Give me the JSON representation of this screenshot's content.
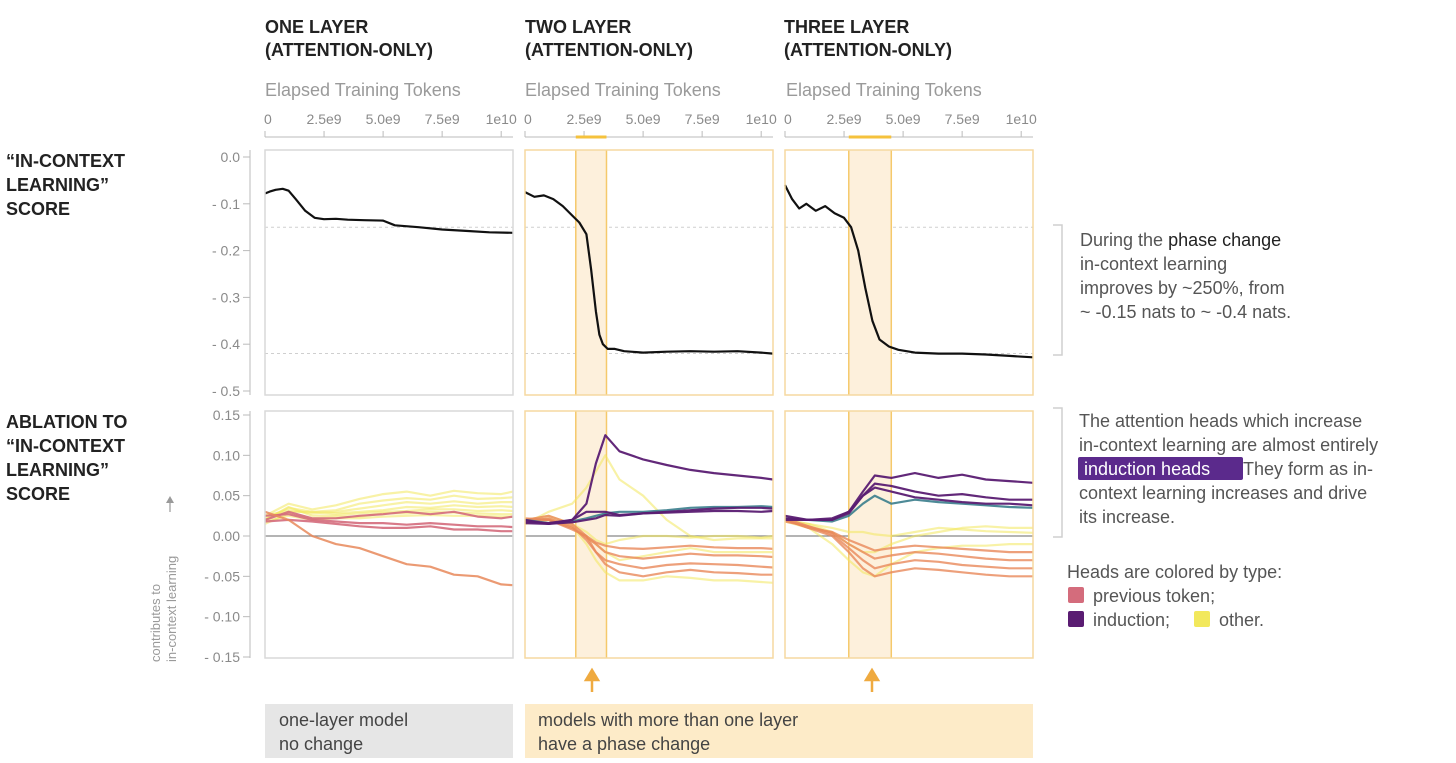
{
  "columns": [
    {
      "title_line1": "ONE LAYER",
      "title_line2": "(ATTENTION-ONLY)",
      "xlabel": "Elapsed Training Tokens"
    },
    {
      "title_line1": "TWO LAYER",
      "title_line2": "(ATTENTION-ONLY)",
      "xlabel": "Elapsed Training Tokens"
    },
    {
      "title_line1": "THREE LAYER",
      "title_line2": "(ATTENTION-ONLY)",
      "xlabel": "Elapsed Training Tokens"
    }
  ],
  "x_ticks": [
    "0",
    "2.5e9",
    "5.0e9",
    "7.5e9",
    "1e10"
  ],
  "row_labels": {
    "icl": [
      "“IN-CONTEXT",
      "LEARNING”",
      "SCORE"
    ],
    "ablation": [
      "ABLATION TO",
      "“IN-CONTEXT",
      "LEARNING”",
      "SCORE"
    ]
  },
  "icl_yticks": [
    "0.0",
    "- 0.1",
    "- 0.2",
    "- 0.3",
    "- 0.4",
    "- 0.5"
  ],
  "abl_yticks": [
    "0.15",
    "0.10",
    "0.05",
    "0.00",
    "- 0.05",
    "- 0.10",
    "- 0.15"
  ],
  "abl_ylabel": [
    "contributes to",
    "in-context learning"
  ],
  "annotations": {
    "phase_change": {
      "prefix": "During the ",
      "highlight": "phase change",
      "rest": [
        "in-context learning",
        "improves by ~250%, from",
        "~ -0.15 nats to ~ -0.4 nats."
      ]
    },
    "induction": {
      "line1": "The attention heads which increase",
      "line2": "in-context learning are almost entirely",
      "highlight": "induction heads",
      "line3_rest": " They form as in-",
      "line4": "context learning increases and drive",
      "line5": "its increase."
    },
    "legend": {
      "title": "Heads are colored by type:",
      "prev": "previous token;",
      "induction": "induction;",
      "other": "other."
    }
  },
  "footer": {
    "one_layer": [
      "one-layer model",
      "no change"
    ],
    "multi_layer": [
      "models with more than one layer",
      "have a phase change"
    ]
  },
  "colors": {
    "previous_token": "#d46c7c",
    "induction": "#5a1c72",
    "other": "#f2e85c",
    "phase_band": "#fdf0dc",
    "phase_line": "#f5c96b",
    "arrow": "#efaa40",
    "footer_gray": "#e6e6e6",
    "footer_orange": "#fdebc8",
    "highlight_purple": "#5b2a8c"
  },
  "chart_data": [
    {
      "type": "line",
      "title": "ONE LAYER (ATTENTION-ONLY)",
      "xlabel": "Elapsed Training Tokens",
      "xlim": [
        0,
        10500000000.0
      ],
      "ylim": [
        -0.5,
        0.0
      ],
      "ylabel": "“IN-CONTEXT LEARNING” SCORE",
      "reference_lines": [
        -0.15,
        -0.42
      ],
      "x": [
        0,
        200000000.0,
        450000000.0,
        750000000.0,
        1000000000.0,
        1300000000.0,
        1700000000.0,
        2100000000.0,
        2500000000.0,
        3000000000.0,
        3500000000.0,
        4200000000.0,
        5000000000.0,
        5500000000.0,
        6500000000.0,
        7500000000.0,
        8500000000.0,
        9500000000.0,
        10500000000.0
      ],
      "y": [
        -0.078,
        -0.074,
        -0.07,
        -0.068,
        -0.072,
        -0.09,
        -0.115,
        -0.13,
        -0.133,
        -0.132,
        -0.134,
        -0.135,
        -0.136,
        -0.146,
        -0.15,
        -0.155,
        -0.158,
        -0.161,
        -0.162
      ]
    },
    {
      "type": "line",
      "title": "TWO LAYER (ATTENTION-ONLY)",
      "xlabel": "Elapsed Training Tokens",
      "xlim": [
        0,
        10500000000.0
      ],
      "ylim": [
        -0.5,
        0.0
      ],
      "reference_lines": [
        -0.15,
        -0.42
      ],
      "phase_change": [
        2150000000.0,
        3450000000.0
      ],
      "x": [
        0,
        400000000.0,
        800000000.0,
        1200000000.0,
        1600000000.0,
        2000000000.0,
        2300000000.0,
        2600000000.0,
        2800000000.0,
        3000000000.0,
        3150000000.0,
        3300000000.0,
        3500000000.0,
        3800000000.0,
        4200000000.0,
        5000000000.0,
        6000000000.0,
        7000000000.0,
        8000000000.0,
        9000000000.0,
        10000000000.0,
        10500000000.0
      ],
      "y": [
        -0.075,
        -0.085,
        -0.082,
        -0.09,
        -0.105,
        -0.125,
        -0.14,
        -0.165,
        -0.24,
        -0.33,
        -0.38,
        -0.4,
        -0.41,
        -0.41,
        -0.415,
        -0.418,
        -0.416,
        -0.415,
        -0.416,
        -0.415,
        -0.418,
        -0.42
      ]
    },
    {
      "type": "line",
      "title": "THREE LAYER (ATTENTION-ONLY)",
      "xlabel": "Elapsed Training Tokens",
      "xlim": [
        0,
        10500000000.0
      ],
      "ylim": [
        -0.5,
        0.0
      ],
      "reference_lines": [
        -0.15,
        -0.42
      ],
      "phase_change": [
        2700000000.0,
        4500000000.0
      ],
      "x": [
        0,
        300000000.0,
        600000000.0,
        900000000.0,
        1300000000.0,
        1700000000.0,
        2100000000.0,
        2500000000.0,
        2800000000.0,
        3100000000.0,
        3400000000.0,
        3700000000.0,
        4000000000.0,
        4400000000.0,
        4800000000.0,
        5500000000.0,
        6500000000.0,
        7500000000.0,
        8500000000.0,
        9500000000.0,
        10500000000.0
      ],
      "y": [
        -0.06,
        -0.09,
        -0.11,
        -0.1,
        -0.115,
        -0.105,
        -0.12,
        -0.13,
        -0.15,
        -0.2,
        -0.28,
        -0.35,
        -0.39,
        -0.405,
        -0.412,
        -0.418,
        -0.42,
        -0.42,
        -0.422,
        -0.425,
        -0.428
      ]
    },
    {
      "type": "line",
      "title": "ONE LAYER ablation",
      "ylabel": "contributes to in-context learning",
      "xlim": [
        0,
        10500000000.0
      ],
      "ylim": [
        -0.15,
        0.15
      ],
      "x": [
        0,
        1000000000.0,
        2000000000.0,
        3000000000.0,
        4000000000.0,
        5000000000.0,
        6000000000.0,
        7000000000.0,
        8000000000.0,
        9000000000.0,
        10000000000.0,
        10500000000.0
      ],
      "series": [
        {
          "type": "other",
          "values": [
            0.025,
            0.04,
            0.033,
            0.038,
            0.046,
            0.052,
            0.055,
            0.05,
            0.056,
            0.053,
            0.052,
            0.055
          ]
        },
        {
          "type": "other",
          "values": [
            0.02,
            0.035,
            0.03,
            0.032,
            0.04,
            0.044,
            0.047,
            0.045,
            0.05,
            0.046,
            0.047,
            0.048
          ]
        },
        {
          "type": "other",
          "values": [
            0.025,
            0.032,
            0.028,
            0.03,
            0.034,
            0.038,
            0.042,
            0.04,
            0.043,
            0.04,
            0.042,
            0.042
          ]
        },
        {
          "type": "other",
          "values": [
            0.022,
            0.03,
            0.03,
            0.028,
            0.03,
            0.032,
            0.036,
            0.035,
            0.038,
            0.036,
            0.037,
            0.036
          ]
        },
        {
          "type": "other",
          "values": [
            0.02,
            0.036,
            0.025,
            0.026,
            0.028,
            0.03,
            0.031,
            0.033,
            0.033,
            0.031,
            0.032,
            0.031
          ]
        },
        {
          "type": "other",
          "values": [
            0.015,
            0.028,
            0.022,
            0.024,
            0.024,
            0.028,
            0.028,
            0.03,
            0.029,
            0.028,
            0.027,
            0.027
          ]
        },
        {
          "type": "other",
          "values": [
            0.018,
            0.025,
            0.02,
            0.022,
            0.022,
            0.024,
            0.025,
            0.026,
            0.025,
            0.025,
            0.024,
            0.024
          ]
        },
        {
          "type": "previous_token",
          "values": [
            0.025,
            0.027,
            0.02,
            0.018,
            0.016,
            0.016,
            0.014,
            0.016,
            0.014,
            0.012,
            0.012,
            0.011
          ]
        },
        {
          "type": "previous_token",
          "values": [
            0.02,
            0.03,
            0.022,
            0.022,
            0.025,
            0.027,
            0.03,
            0.027,
            0.03,
            0.024,
            0.022,
            0.024
          ]
        },
        {
          "type": "previous_token",
          "values": [
            0.018,
            0.02,
            0.018,
            0.015,
            0.012,
            0.01,
            0.01,
            0.012,
            0.008,
            0.008,
            0.006,
            0.006
          ]
        },
        {
          "type": "previous_token_orange",
          "values": [
            0.03,
            0.02,
            0.0,
            -0.01,
            -0.015,
            -0.025,
            -0.035,
            -0.038,
            -0.048,
            -0.05,
            -0.06,
            -0.061
          ]
        }
      ]
    },
    {
      "type": "line",
      "title": "TWO LAYER ablation",
      "xlim": [
        0,
        10500000000.0
      ],
      "ylim": [
        -0.15,
        0.15
      ],
      "phase_change": [
        2150000000.0,
        3450000000.0
      ],
      "x": [
        0,
        1000000000.0,
        2000000000.0,
        2600000000.0,
        3000000000.0,
        3400000000.0,
        4000000000.0,
        5000000000.0,
        6000000000.0,
        7000000000.0,
        8000000000.0,
        9000000000.0,
        10000000000.0,
        10500000000.0
      ],
      "series": [
        {
          "type": "induction",
          "values": [
            0.02,
            0.015,
            0.02,
            0.04,
            0.09,
            0.125,
            0.105,
            0.095,
            0.088,
            0.082,
            0.078,
            0.075,
            0.072,
            0.07
          ]
        },
        {
          "type": "induction",
          "values": [
            0.018,
            0.016,
            0.02,
            0.03,
            0.03,
            0.03,
            0.026,
            0.028,
            0.03,
            0.032,
            0.034,
            0.035,
            0.035,
            0.034
          ]
        },
        {
          "type": "induction_teal",
          "values": [
            0.02,
            0.016,
            0.018,
            0.022,
            0.025,
            0.028,
            0.03,
            0.03,
            0.032,
            0.035,
            0.036,
            0.036,
            0.037,
            0.036
          ]
        },
        {
          "type": "induction",
          "values": [
            0.016,
            0.015,
            0.017,
            0.02,
            0.022,
            0.026,
            0.025,
            0.028,
            0.029,
            0.03,
            0.031,
            0.031,
            0.03,
            0.031
          ]
        },
        {
          "type": "other",
          "values": [
            0.02,
            0.025,
            0.015,
            0.005,
            -0.005,
            -0.01,
            -0.005,
            0.0,
            0.0,
            -0.002,
            0.0,
            0.0,
            -0.002,
            0.0
          ]
        },
        {
          "type": "other",
          "values": [
            0.015,
            0.02,
            0.01,
            0.0,
            -0.01,
            -0.02,
            -0.03,
            -0.025,
            -0.02,
            -0.015,
            -0.02,
            -0.02,
            -0.02,
            -0.02
          ]
        },
        {
          "type": "other",
          "values": [
            0.018,
            0.022,
            0.012,
            -0.01,
            -0.03,
            -0.045,
            -0.055,
            -0.055,
            -0.05,
            -0.052,
            -0.055,
            -0.055,
            -0.057,
            -0.058
          ]
        },
        {
          "type": "other",
          "values": [
            0.015,
            0.03,
            0.04,
            0.06,
            0.08,
            0.1,
            0.07,
            0.05,
            0.02,
            0.0,
            -0.005,
            -0.003,
            -0.003,
            -0.003
          ]
        },
        {
          "type": "orange",
          "values": [
            0.02,
            0.025,
            0.015,
            0.0,
            -0.02,
            -0.035,
            -0.045,
            -0.05,
            -0.045,
            -0.042,
            -0.045,
            -0.046,
            -0.048,
            -0.048
          ]
        },
        {
          "type": "orange",
          "values": [
            0.018,
            0.022,
            0.012,
            -0.005,
            -0.02,
            -0.03,
            -0.035,
            -0.04,
            -0.036,
            -0.034,
            -0.035,
            -0.036,
            -0.038,
            -0.039
          ]
        },
        {
          "type": "orange",
          "values": [
            0.02,
            0.02,
            0.01,
            -0.002,
            -0.01,
            -0.02,
            -0.025,
            -0.028,
            -0.025,
            -0.022,
            -0.024,
            -0.024,
            -0.025,
            -0.026
          ]
        },
        {
          "type": "orange",
          "values": [
            0.022,
            0.02,
            0.008,
            0.0,
            -0.008,
            -0.012,
            -0.015,
            -0.016,
            -0.014,
            -0.012,
            -0.014,
            -0.015,
            -0.015,
            -0.016
          ]
        }
      ]
    },
    {
      "type": "line",
      "title": "THREE LAYER ablation",
      "xlim": [
        0,
        10500000000.0
      ],
      "ylim": [
        -0.15,
        0.15
      ],
      "phase_change": [
        2700000000.0,
        4500000000.0
      ],
      "x": [
        0,
        1000000000.0,
        2000000000.0,
        2700000000.0,
        3300000000.0,
        3800000000.0,
        4500000000.0,
        5500000000.0,
        6500000000.0,
        7500000000.0,
        8500000000.0,
        9500000000.0,
        10500000000.0
      ],
      "series": [
        {
          "type": "induction",
          "values": [
            0.025,
            0.02,
            0.02,
            0.03,
            0.055,
            0.075,
            0.072,
            0.078,
            0.072,
            0.076,
            0.07,
            0.068,
            0.066
          ]
        },
        {
          "type": "induction",
          "values": [
            0.02,
            0.02,
            0.02,
            0.028,
            0.05,
            0.065,
            0.062,
            0.055,
            0.05,
            0.052,
            0.048,
            0.045,
            0.045
          ]
        },
        {
          "type": "induction_teal",
          "values": [
            0.022,
            0.02,
            0.018,
            0.025,
            0.04,
            0.05,
            0.04,
            0.045,
            0.042,
            0.04,
            0.038,
            0.036,
            0.035
          ]
        },
        {
          "type": "induction",
          "values": [
            0.022,
            0.02,
            0.022,
            0.03,
            0.05,
            0.06,
            0.055,
            0.048,
            0.045,
            0.042,
            0.04,
            0.04,
            0.038
          ]
        },
        {
          "type": "other",
          "values": [
            0.02,
            0.015,
            0.01,
            0.005,
            0.005,
            0.002,
            0.0,
            0.005,
            0.01,
            0.008,
            0.006,
            0.005,
            0.004
          ]
        },
        {
          "type": "other",
          "values": [
            0.018,
            0.01,
            -0.01,
            -0.03,
            -0.045,
            -0.05,
            -0.035,
            -0.02,
            -0.015,
            -0.012,
            -0.012,
            -0.01,
            -0.01
          ]
        },
        {
          "type": "other",
          "values": [
            0.02,
            0.015,
            0.005,
            -0.01,
            -0.02,
            -0.02,
            -0.01,
            0.0,
            0.005,
            0.01,
            0.012,
            0.01,
            0.01
          ]
        },
        {
          "type": "orange",
          "values": [
            0.02,
            0.01,
            0.0,
            -0.02,
            -0.04,
            -0.05,
            -0.045,
            -0.04,
            -0.042,
            -0.045,
            -0.048,
            -0.05,
            -0.05
          ]
        },
        {
          "type": "orange",
          "values": [
            0.022,
            0.012,
            0.002,
            -0.015,
            -0.03,
            -0.04,
            -0.035,
            -0.03,
            -0.032,
            -0.036,
            -0.038,
            -0.04,
            -0.04
          ]
        },
        {
          "type": "orange",
          "values": [
            0.018,
            0.012,
            0.004,
            -0.01,
            -0.02,
            -0.028,
            -0.024,
            -0.02,
            -0.022,
            -0.025,
            -0.028,
            -0.03,
            -0.03
          ]
        },
        {
          "type": "orange",
          "values": [
            0.02,
            0.01,
            0.005,
            -0.005,
            -0.012,
            -0.018,
            -0.015,
            -0.012,
            -0.014,
            -0.016,
            -0.018,
            -0.02,
            -0.02
          ]
        }
      ]
    }
  ]
}
